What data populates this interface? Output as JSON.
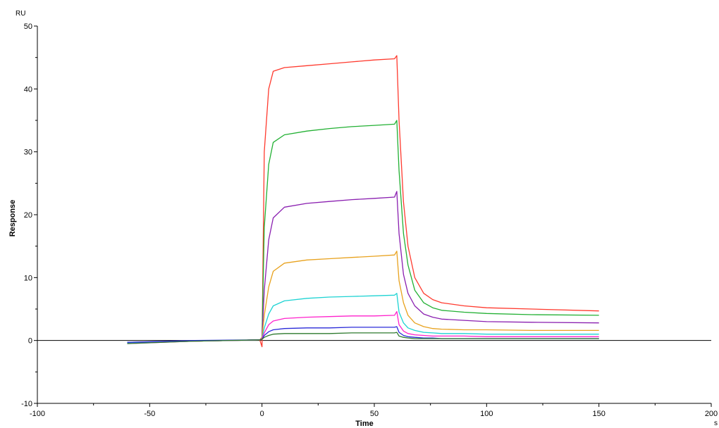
{
  "chart_data": {
    "type": "line",
    "title": "",
    "xlabel": "Time",
    "ylabel": "Response",
    "y_unit": "RU",
    "x_unit": "s",
    "xlim": [
      -100,
      200
    ],
    "ylim": [
      -10,
      50
    ],
    "x_ticks": [
      -100,
      -50,
      0,
      50,
      100,
      150,
      200
    ],
    "y_ticks": [
      -10,
      0,
      10,
      20,
      30,
      40,
      50
    ],
    "grid": false,
    "legend": "none",
    "series": [
      {
        "color": "#ff3a2e",
        "x": [
          -60,
          -30,
          -1,
          0,
          1,
          3,
          5,
          10,
          20,
          30,
          40,
          50,
          59,
          60,
          61,
          63,
          65,
          68,
          72,
          76,
          80,
          90,
          100,
          120,
          150
        ],
        "y": [
          -0.3,
          -0.1,
          0.1,
          -1.0,
          30.0,
          40.0,
          42.8,
          43.4,
          43.7,
          44.0,
          44.3,
          44.6,
          44.8,
          45.3,
          35.0,
          22.0,
          15.0,
          10.0,
          7.5,
          6.5,
          6.0,
          5.5,
          5.2,
          5.0,
          4.7
        ]
      },
      {
        "color": "#22b033",
        "x": [
          -60,
          -30,
          -1,
          0,
          1,
          3,
          5,
          10,
          20,
          30,
          40,
          50,
          59,
          60,
          61,
          63,
          65,
          68,
          72,
          76,
          80,
          90,
          100,
          120,
          150
        ],
        "y": [
          -0.4,
          -0.1,
          0.1,
          0.4,
          18.0,
          28.0,
          31.5,
          32.7,
          33.3,
          33.7,
          34.0,
          34.2,
          34.4,
          35.0,
          27.0,
          17.0,
          12.0,
          8.0,
          6.0,
          5.2,
          4.8,
          4.5,
          4.3,
          4.1,
          4.0
        ]
      },
      {
        "color": "#8a1fb0",
        "x": [
          -60,
          -30,
          -1,
          0,
          1,
          3,
          5,
          10,
          20,
          30,
          40,
          50,
          59,
          60,
          61,
          63,
          65,
          68,
          72,
          76,
          80,
          90,
          100,
          120,
          150
        ],
        "y": [
          -0.3,
          -0.1,
          0.1,
          0.5,
          8.0,
          16.0,
          19.5,
          21.2,
          21.8,
          22.1,
          22.4,
          22.6,
          22.8,
          23.7,
          17.0,
          10.5,
          7.5,
          5.5,
          4.2,
          3.7,
          3.4,
          3.2,
          3.0,
          2.9,
          2.8
        ]
      },
      {
        "color": "#e8a21e",
        "x": [
          -60,
          -30,
          -1,
          0,
          1,
          3,
          5,
          10,
          20,
          30,
          40,
          50,
          59,
          60,
          61,
          63,
          65,
          68,
          72,
          76,
          80,
          90,
          100,
          120,
          150
        ],
        "y": [
          -0.4,
          -0.1,
          0.1,
          0.5,
          4.0,
          8.5,
          11.0,
          12.3,
          12.8,
          13.0,
          13.2,
          13.4,
          13.6,
          14.2,
          9.5,
          6.0,
          4.0,
          2.8,
          2.2,
          1.9,
          1.8,
          1.7,
          1.7,
          1.6,
          1.6
        ]
      },
      {
        "color": "#1ed3d3",
        "x": [
          -60,
          -30,
          -1,
          0,
          1,
          3,
          5,
          10,
          20,
          30,
          40,
          50,
          59,
          60,
          61,
          63,
          65,
          68,
          72,
          76,
          80,
          90,
          100,
          120,
          150
        ],
        "y": [
          -0.4,
          -0.1,
          0.1,
          0.3,
          2.0,
          4.2,
          5.5,
          6.3,
          6.7,
          6.9,
          7.0,
          7.1,
          7.2,
          7.5,
          4.5,
          2.8,
          2.0,
          1.6,
          1.3,
          1.2,
          1.1,
          1.1,
          1.0,
          1.0,
          1.0
        ]
      },
      {
        "color": "#ff22cc",
        "x": [
          -60,
          -30,
          -1,
          0,
          1,
          3,
          5,
          10,
          20,
          30,
          40,
          50,
          59,
          60,
          61,
          63,
          65,
          68,
          72,
          76,
          80,
          90,
          100,
          120,
          150
        ],
        "y": [
          -0.5,
          -0.1,
          0.1,
          0.3,
          1.2,
          2.5,
          3.1,
          3.5,
          3.7,
          3.8,
          3.9,
          3.9,
          4.0,
          4.6,
          2.5,
          1.5,
          1.1,
          0.9,
          0.8,
          0.7,
          0.7,
          0.7,
          0.6,
          0.6,
          0.6
        ]
      },
      {
        "color": "#2a2ad8",
        "x": [
          -60,
          -30,
          -1,
          0,
          1,
          3,
          5,
          10,
          20,
          30,
          40,
          50,
          59,
          60,
          61,
          63,
          65,
          68,
          72,
          76,
          80,
          90,
          100,
          120,
          150
        ],
        "y": [
          -0.3,
          0.0,
          0.1,
          0.2,
          0.8,
          1.4,
          1.7,
          1.9,
          2.0,
          2.0,
          2.1,
          2.1,
          2.1,
          2.2,
          1.3,
          0.8,
          0.6,
          0.5,
          0.4,
          0.4,
          0.3,
          0.3,
          0.3,
          0.3,
          0.3
        ]
      },
      {
        "color": "#2e7a2e",
        "x": [
          -60,
          -30,
          -1,
          0,
          1,
          3,
          5,
          10,
          20,
          30,
          40,
          50,
          59,
          60,
          61,
          63,
          65,
          68,
          72,
          76,
          80,
          90,
          100,
          120,
          150
        ],
        "y": [
          -0.5,
          -0.1,
          0.1,
          0.2,
          0.5,
          0.8,
          1.0,
          1.1,
          1.1,
          1.1,
          1.2,
          1.2,
          1.2,
          1.3,
          0.7,
          0.5,
          0.4,
          0.3,
          0.3,
          0.3,
          0.3,
          0.3,
          0.3,
          0.3,
          0.3
        ]
      }
    ]
  }
}
